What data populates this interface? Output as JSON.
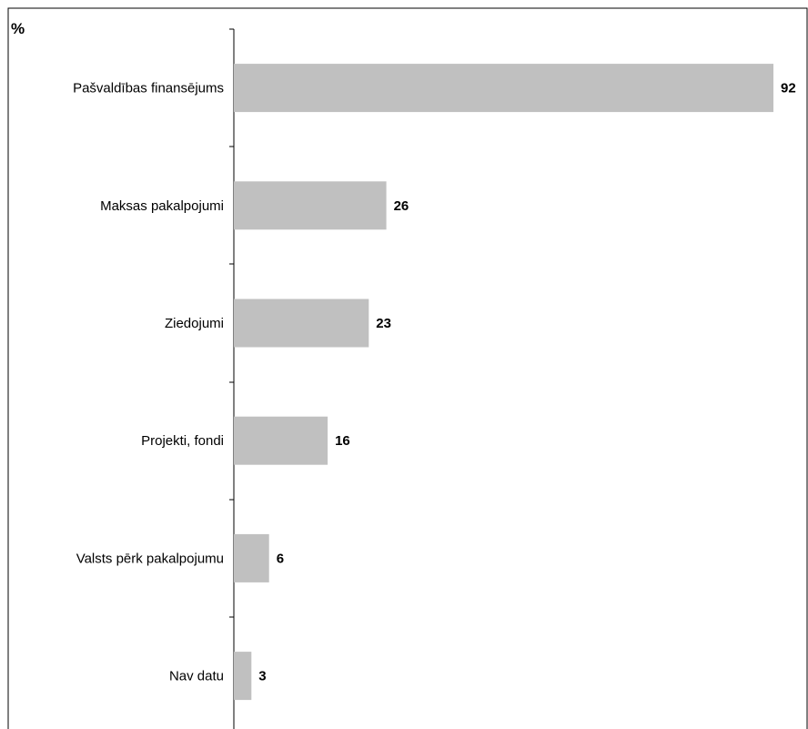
{
  "chart_data": {
    "type": "bar",
    "orientation": "horizontal",
    "unit_label": "%",
    "categories": [
      "Pašvaldības finansējums",
      "Maksas pakalpojumi",
      "Ziedojumi",
      "Projekti, fondi",
      "Valsts pērk pakalpojumu",
      "Nav datu"
    ],
    "values": [
      92,
      26,
      23,
      16,
      6,
      3
    ],
    "xlim": [
      0,
      92
    ],
    "grid": false,
    "legend": "none",
    "colors": {
      "bar": "#c0c0c0",
      "axis": "#000000",
      "frame": "#000000"
    }
  }
}
